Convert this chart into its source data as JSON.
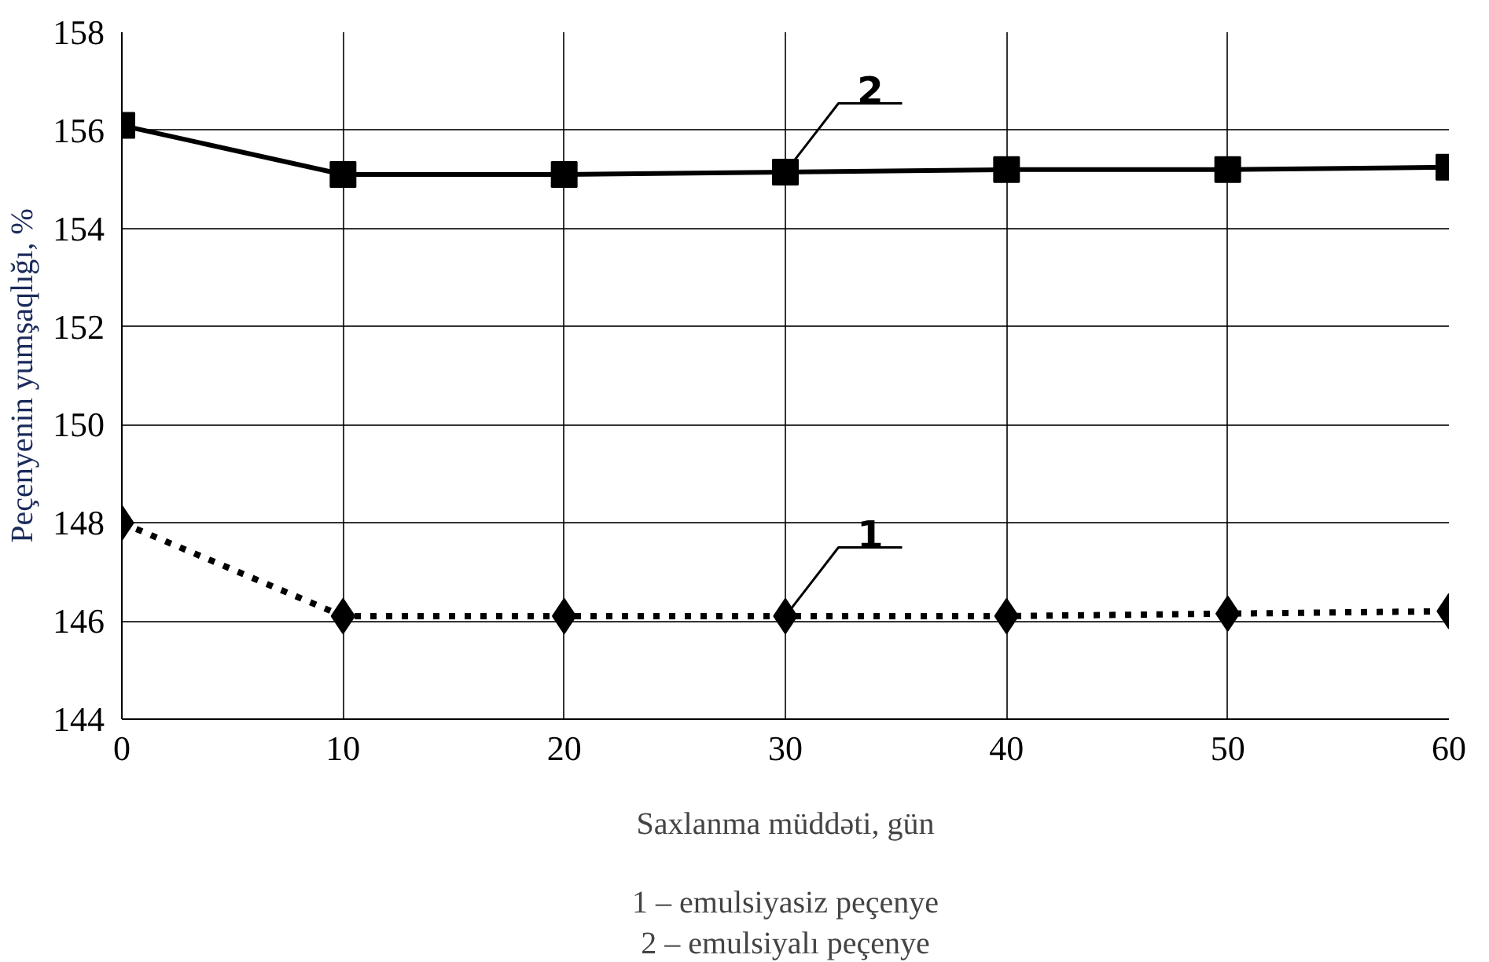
{
  "chart_data": {
    "type": "line",
    "xlabel": "Saxlanma müddəti, gün",
    "ylabel": "Peçenyenin yumşaqlığı, %",
    "x": [
      0,
      10,
      20,
      30,
      40,
      50,
      60
    ],
    "series": [
      {
        "name": "1",
        "color": "#000000",
        "values": [
          148,
          146.1,
          146.1,
          146.1,
          146.1,
          146.15,
          146.2
        ],
        "marker": "diamond",
        "line_style": "dotted"
      },
      {
        "name": "2",
        "color": "#000000",
        "values": [
          156.1,
          155.1,
          155.1,
          155.15,
          155.2,
          155.2,
          155.25
        ],
        "marker": "square",
        "line_style": "solid"
      }
    ],
    "xlim": [
      0,
      60
    ],
    "ylim": [
      144,
      158
    ],
    "xticks": [
      0,
      10,
      20,
      30,
      40,
      50,
      60
    ],
    "yticks": [
      144,
      146,
      148,
      150,
      152,
      154,
      156,
      158
    ],
    "grid": true,
    "annotations": [
      "1 – emulsiyasiz peçenye",
      "2 – emulsiyalı peçenye"
    ]
  }
}
